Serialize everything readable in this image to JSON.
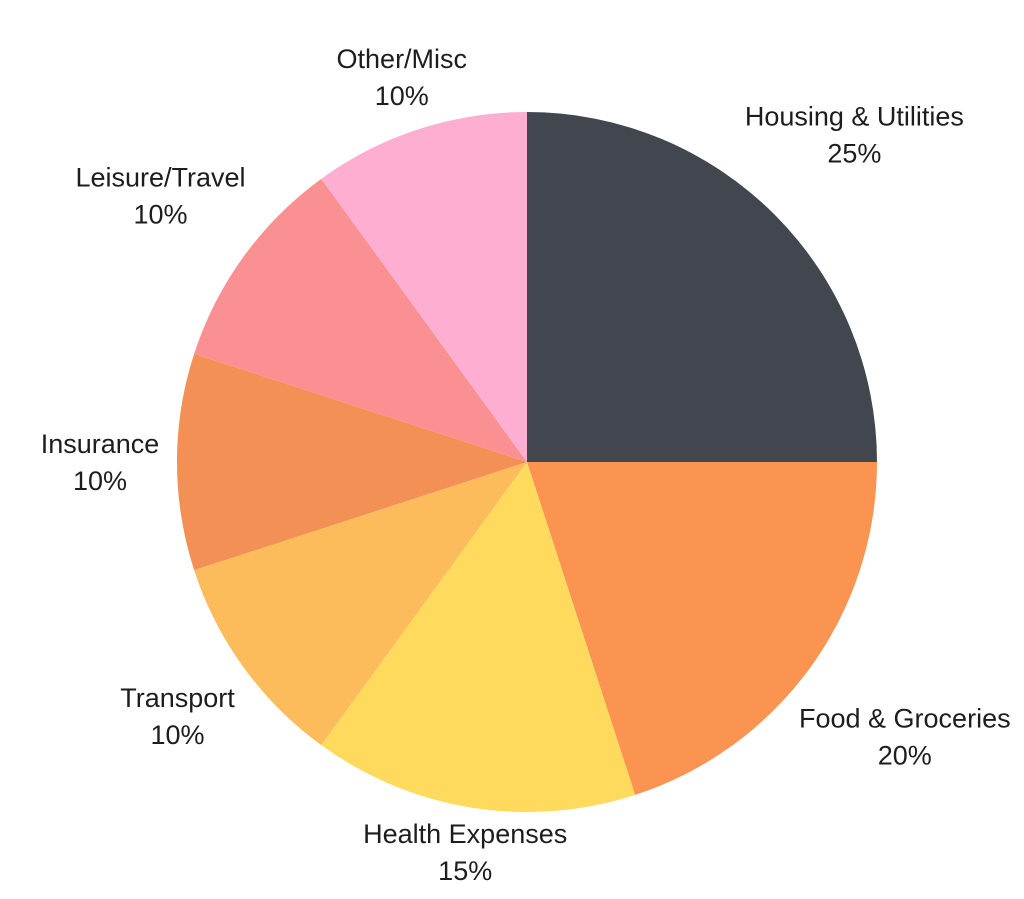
{
  "canvas": {
    "background": "#ffffff",
    "text_color": "#1d1d1f"
  },
  "chart_data": {
    "type": "pie",
    "title": "",
    "legend": "none",
    "labels_position": "outside",
    "start_angle_deg": 0,
    "direction": "clockwise",
    "slices": [
      {
        "label": "Housing & Utilities",
        "value": 25,
        "pct_label": "25%",
        "color": "#42474F",
        "label_distance": 113
      },
      {
        "label": "Food & Groceries",
        "value": 20,
        "pct_label": "20%",
        "color": "#FB9351",
        "label_distance": 117
      },
      {
        "label": "Health Expenses",
        "value": 15,
        "pct_label": "15%",
        "color": "#FFDA5C",
        "label_distance": 45
      },
      {
        "label": "Transport",
        "value": 10,
        "pct_label": "10%",
        "color": "#FCBC5B",
        "label_distance": 82
      },
      {
        "label": "Insurance",
        "value": 10,
        "pct_label": "10%",
        "color": "#F29055",
        "label_distance": 77
      },
      {
        "label": "Leisure/Travel",
        "value": 10,
        "pct_label": "10%",
        "color": "#FB9092",
        "label_distance": 103
      },
      {
        "label": "Other/Misc",
        "value": 10,
        "pct_label": "10%",
        "color": "#FEAFD1",
        "label_distance": 55
      }
    ]
  }
}
